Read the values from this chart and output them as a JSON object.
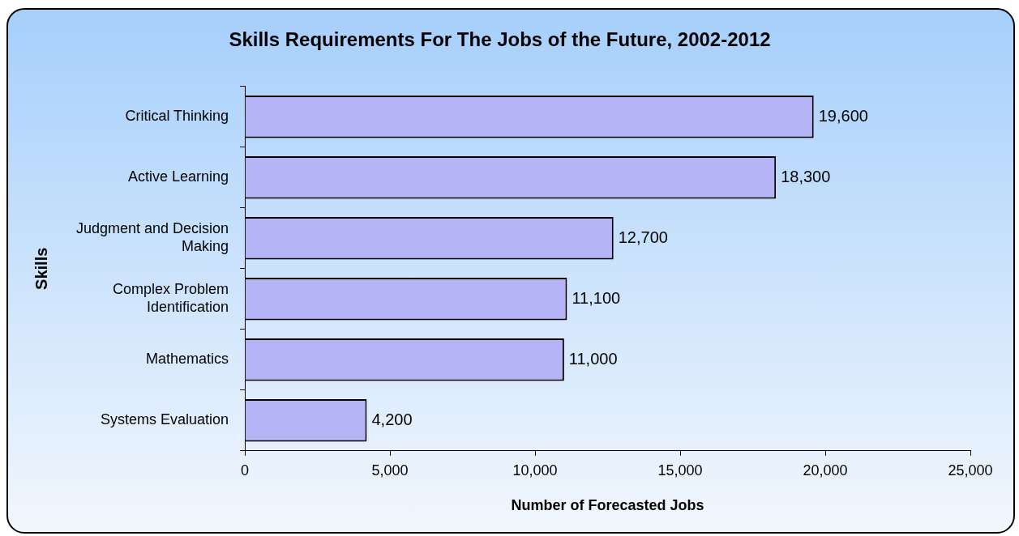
{
  "chart_data": {
    "type": "bar",
    "orientation": "horizontal",
    "title": "Skills Requirements For The Jobs of the Future, 2002-2012",
    "xlabel": "Number of Forecasted Jobs",
    "ylabel": "Skills",
    "categories": [
      "Critical Thinking",
      "Active Learning",
      "Judgment and Decision Making",
      "Complex Problem Identification",
      "Mathematics",
      "Systems Evaluation"
    ],
    "values": [
      19600,
      18300,
      12700,
      11100,
      11000,
      4200
    ],
    "value_labels": [
      "19,600",
      "18,300",
      "12,700",
      "11,100",
      "11,000",
      "4,200"
    ],
    "color": "#b4b4f6",
    "xlim": [
      0,
      25000
    ],
    "xticks": [
      0,
      {
        "value": 5000,
        "label": "5,000"
      },
      {
        "value": 10000,
        "label": "10,000"
      },
      {
        "value": 15000,
        "label": "15,000"
      },
      {
        "value": 20000,
        "label": "20,000"
      },
      {
        "value": 25000,
        "label": "25,000"
      }
    ],
    "grid": false,
    "legend": false
  }
}
